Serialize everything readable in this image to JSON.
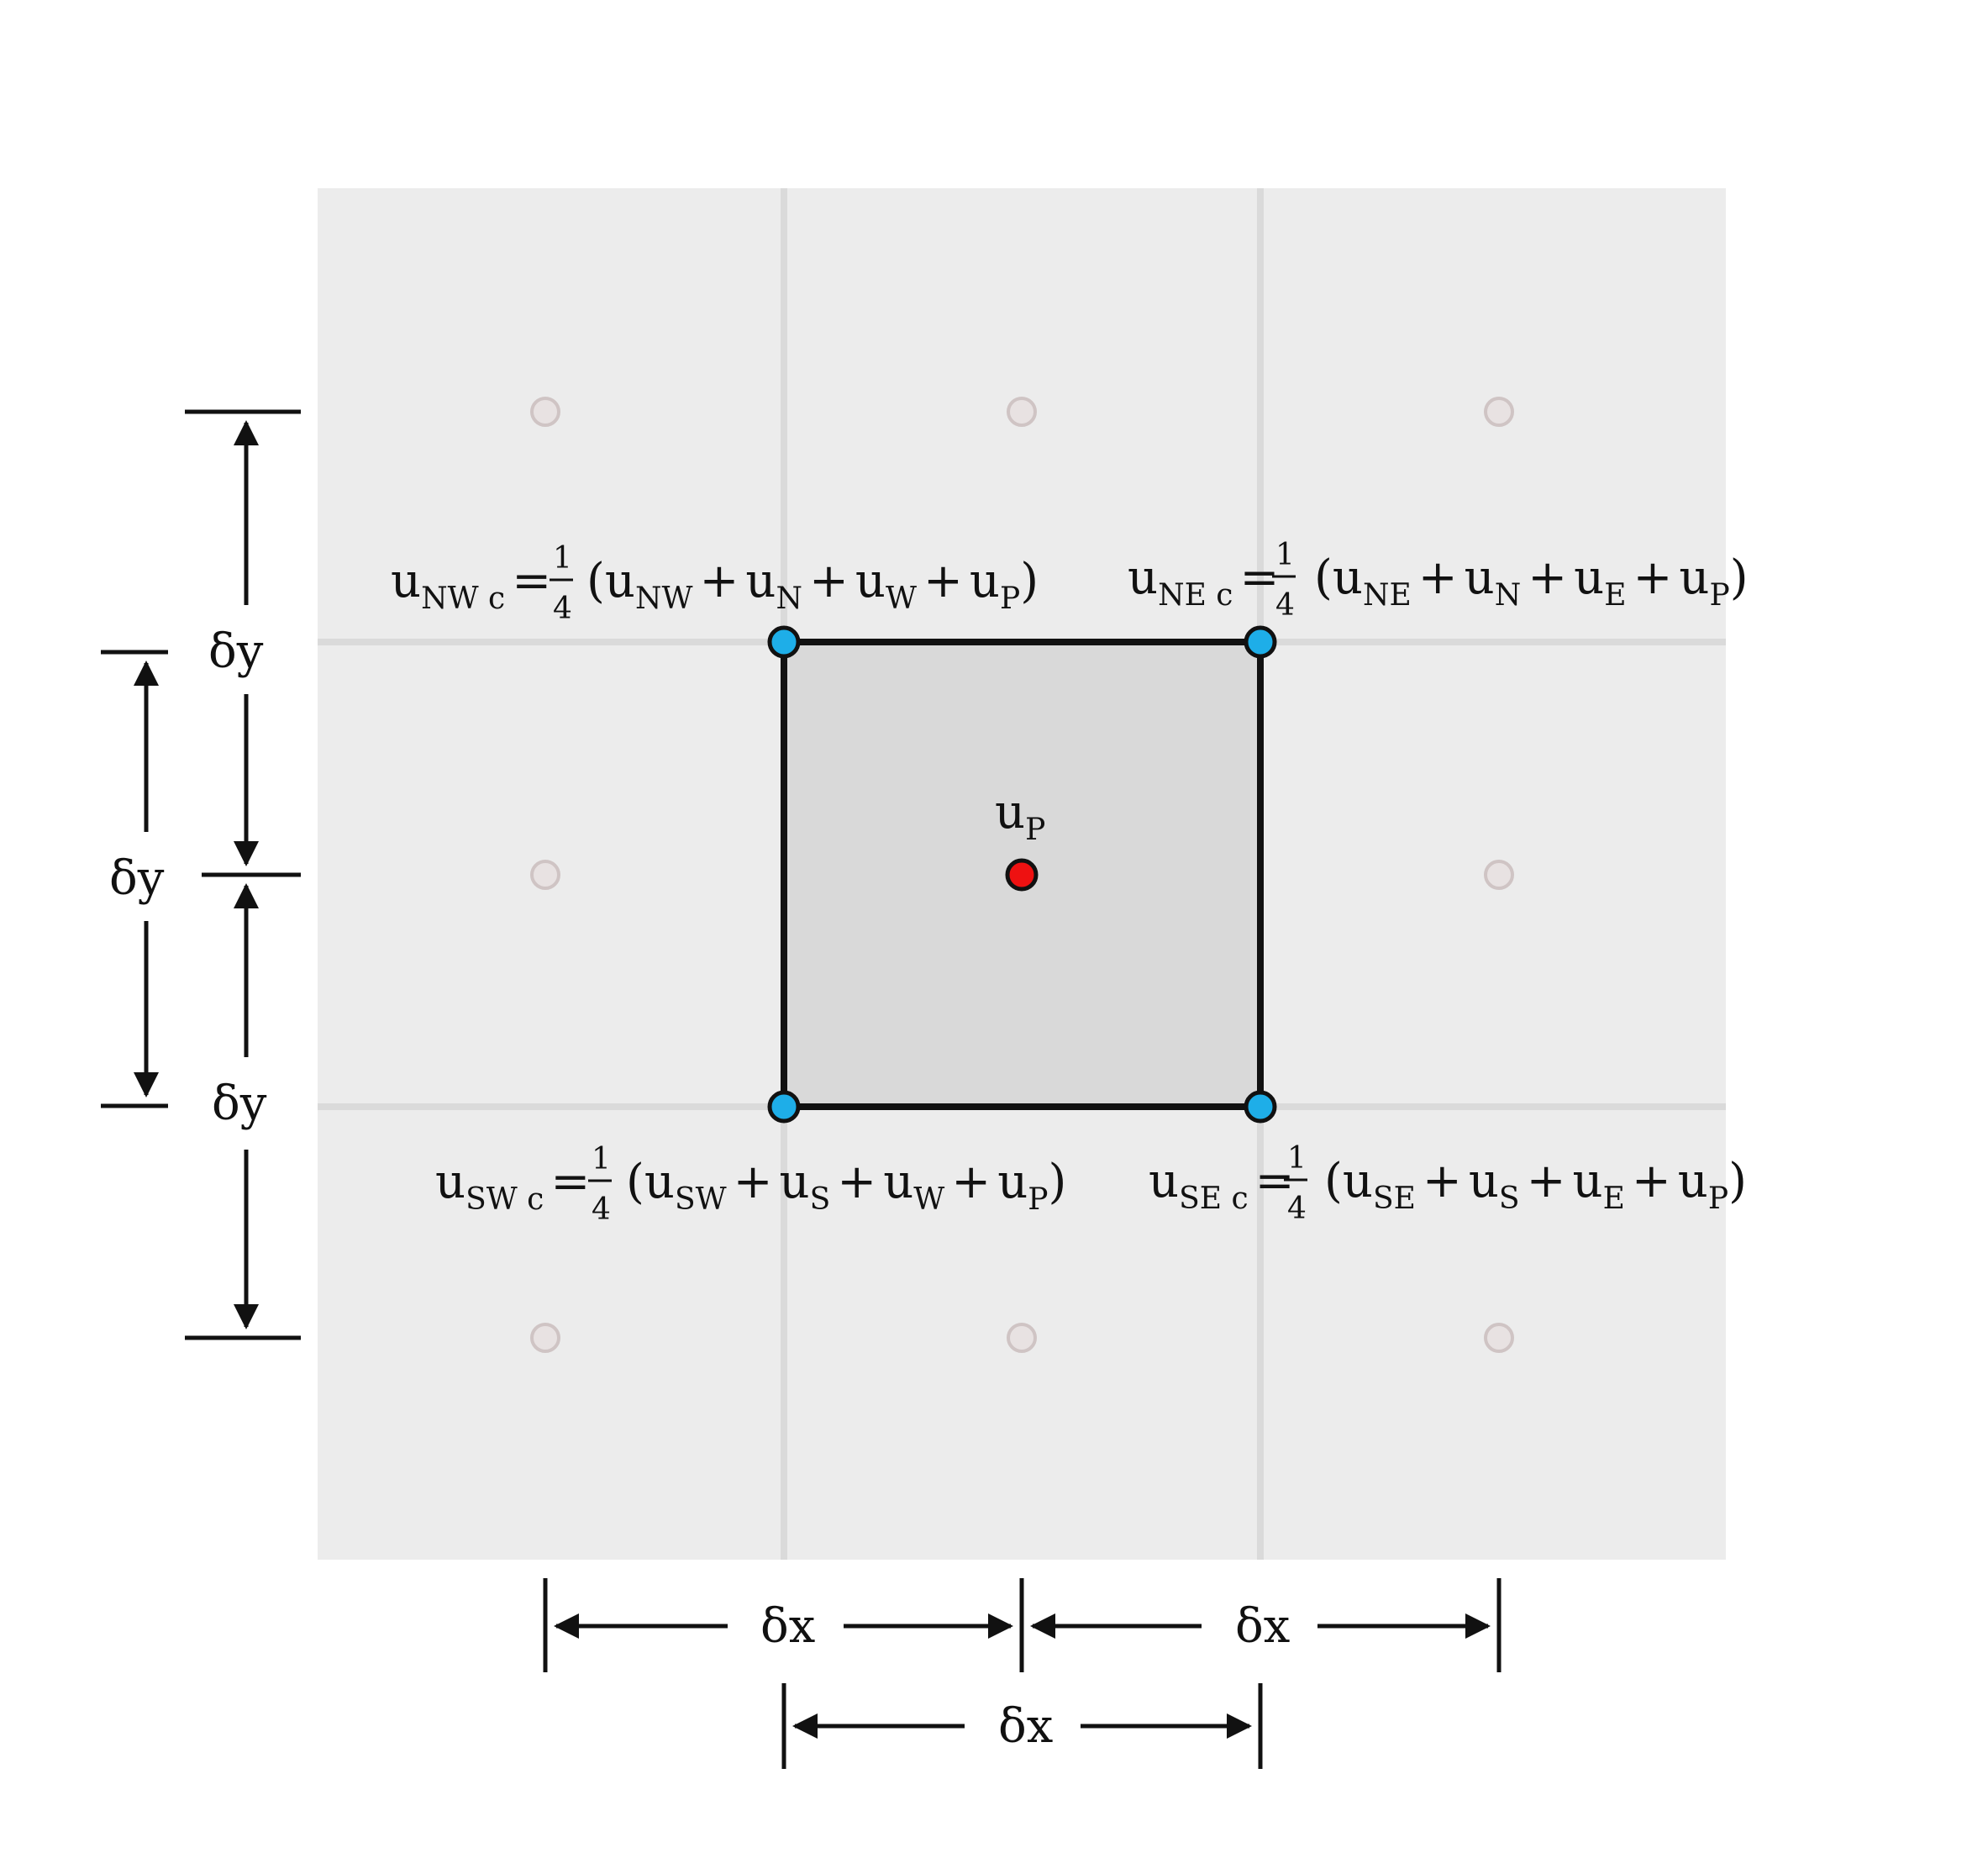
{
  "colors": {
    "background": "#ffffff",
    "domain": "#ececec",
    "grid_line": "#dadada",
    "center_cell": "#d9d9d9",
    "cell_border": "#111111",
    "corner_node": "#1eaee8",
    "center_node": "#ee1111",
    "ghost_node": "#e8e2e2",
    "ghost_node_stroke": "#cfc4c4"
  },
  "center": {
    "u": "u",
    "sub": "P"
  },
  "formulas": {
    "nw": {
      "lhs_sub": "NW c",
      "frac_num": "1",
      "frac_den": "4",
      "terms": [
        {
          "u": "u",
          "sub": "NW"
        },
        {
          "u": "u",
          "sub": "N"
        },
        {
          "u": "u",
          "sub": "W"
        },
        {
          "u": "u",
          "sub": "P"
        }
      ]
    },
    "ne": {
      "lhs_sub": "NE c",
      "frac_num": "1",
      "frac_den": "4",
      "terms": [
        {
          "u": "u",
          "sub": "NE"
        },
        {
          "u": "u",
          "sub": "N"
        },
        {
          "u": "u",
          "sub": "E"
        },
        {
          "u": "u",
          "sub": "P"
        }
      ]
    },
    "sw": {
      "lhs_sub": "SW c",
      "frac_num": "1",
      "frac_den": "4",
      "terms": [
        {
          "u": "u",
          "sub": "SW"
        },
        {
          "u": "u",
          "sub": "S"
        },
        {
          "u": "u",
          "sub": "W"
        },
        {
          "u": "u",
          "sub": "P"
        }
      ]
    },
    "se": {
      "lhs_sub": "SE c",
      "frac_num": "1",
      "frac_den": "4",
      "terms": [
        {
          "u": "u",
          "sub": "SE"
        },
        {
          "u": "u",
          "sub": "S"
        },
        {
          "u": "u",
          "sub": "E"
        },
        {
          "u": "u",
          "sub": "P"
        }
      ]
    }
  },
  "symbols": {
    "u": "u",
    "equals": "=",
    "plus": "+",
    "open_paren": "(",
    "close_paren": ")"
  },
  "dimensions": {
    "dx_top_left": "δx",
    "dx_top_right": "δx",
    "dx_bottom": "δx",
    "dy_outer_top": "δy",
    "dy_outer_bottom": "δy",
    "dy_inner": "δy"
  }
}
